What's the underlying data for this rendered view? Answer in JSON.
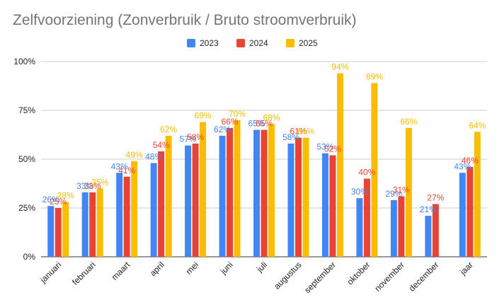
{
  "chart_data": {
    "type": "bar",
    "title": "Zelfvoorziening (Zonverbruik / Bruto stroomverbruik)",
    "xlabel": "",
    "ylabel": "",
    "ylim": [
      0,
      100
    ],
    "y_ticks": [
      0,
      25,
      50,
      75,
      100
    ],
    "y_tick_labels": [
      "0%",
      "25%",
      "50%",
      "75%",
      "100%"
    ],
    "grid": true,
    "legend_position": "top-center",
    "categories": [
      "januari",
      "februari",
      "maart",
      "april",
      "mei",
      "juni",
      "juli",
      "augustus",
      "september",
      "oktober",
      "november",
      "december",
      "jaar"
    ],
    "series": [
      {
        "name": "2023",
        "color": "#4285f4",
        "values": [
          26,
          33,
          43,
          48,
          57,
          62,
          65,
          58,
          53,
          30,
          29,
          21,
          43
        ],
        "labels": [
          "26%",
          "33%",
          "43%",
          "48%",
          "57%",
          "62%",
          "65%",
          "58%",
          "53%",
          "30%",
          "29%",
          "21%",
          "43%"
        ]
      },
      {
        "name": "2024",
        "color": "#ea4335",
        "values": [
          25,
          33,
          41,
          54,
          58,
          66,
          65,
          61,
          52,
          40,
          31,
          27,
          46
        ],
        "labels": [
          "25%",
          "33%",
          "41%",
          "54%",
          "58%",
          "66%",
          "65%",
          "61%",
          "52%",
          "40%",
          "31%",
          "27%",
          "46%"
        ]
      },
      {
        "name": "2025",
        "color": "#fbbc04",
        "values": [
          28,
          35,
          49,
          62,
          69,
          70,
          68,
          61,
          94,
          89,
          66,
          null,
          64
        ],
        "labels": [
          "28%",
          "35%",
          "49%",
          "62%",
          "69%",
          "70%",
          "68%",
          "61%",
          "94%",
          "89%",
          "66%",
          null,
          "64%"
        ]
      }
    ]
  }
}
